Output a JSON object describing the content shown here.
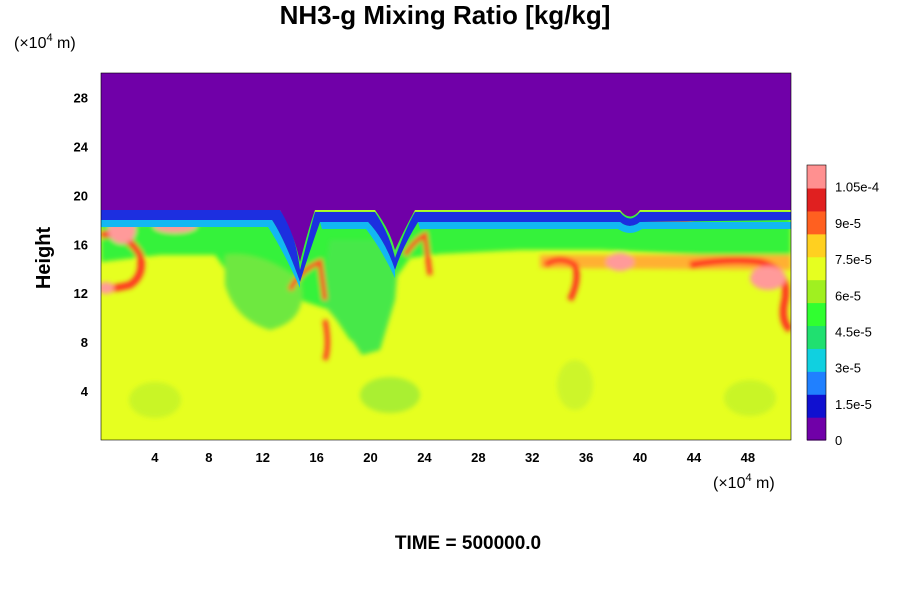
{
  "chart_data": {
    "type": "heatmap",
    "title": "NH3-g Mixing Ratio [kg/kg]",
    "ylabel": "Height",
    "xlabel": "",
    "y_unit_prefix": "(×10",
    "y_unit_exp": "4",
    "y_unit_suffix": " m)",
    "x_unit_prefix": "(×10",
    "x_unit_exp": "4",
    "x_unit_suffix": " m)",
    "xlim": [
      0,
      51.2
    ],
    "ylim": [
      0,
      30
    ],
    "x_ticks": [
      4,
      8,
      12,
      16,
      20,
      24,
      28,
      32,
      36,
      40,
      44,
      48
    ],
    "y_ticks": [
      4,
      8,
      12,
      16,
      20,
      24,
      28
    ],
    "colorbar": {
      "range": [
        0,
        0.000114
      ],
      "labels": [
        {
          "value": 0,
          "text": "0"
        },
        {
          "value": 1.5e-05,
          "text": "1.5e-5"
        },
        {
          "value": 3e-05,
          "text": "3e-5"
        },
        {
          "value": 4.5e-05,
          "text": "4.5e-5"
        },
        {
          "value": 6e-05,
          "text": "6e-5"
        },
        {
          "value": 7.5e-05,
          "text": "7.5e-5"
        },
        {
          "value": 9e-05,
          "text": "9e-5"
        },
        {
          "value": 0.000105,
          "text": "1.05e-4"
        }
      ],
      "colors": [
        "#7000a8",
        "#1010d0",
        "#2080ff",
        "#10d0e0",
        "#20e070",
        "#30ff30",
        "#a0f020",
        "#e6ff20",
        "#ffd020",
        "#ff6020",
        "#e02020",
        "#ff9090"
      ]
    },
    "field_description": {
      "upper_value": 0,
      "lower_value": 7.8e-05,
      "layer_top_height": 18.5
    }
  },
  "footer": {
    "time_label": "TIME = 500000.0"
  }
}
